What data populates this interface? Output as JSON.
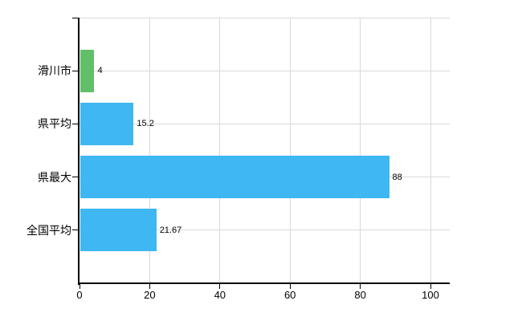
{
  "chart_data": {
    "type": "bar",
    "orientation": "horizontal",
    "title": "",
    "xlabel": "",
    "ylabel": "",
    "categories": [
      "滑川市",
      "県平均",
      "県最大",
      "全国平均"
    ],
    "values": [
      4,
      15.2,
      88,
      21.67
    ],
    "value_labels": [
      "4",
      "15.2",
      "88",
      "21.67"
    ],
    "bar_colors": [
      "#62bf69",
      "#3eb7f2",
      "#3eb7f2",
      "#3eb7f2"
    ],
    "x_ticks": [
      0,
      20,
      40,
      60,
      80,
      100
    ],
    "x_tick_labels": [
      "0",
      "20",
      "40",
      "60",
      "80",
      "100"
    ],
    "xlim": [
      0,
      105.5
    ],
    "grid": true,
    "legend": "none",
    "background_color": "#ffffff",
    "axis_color": "#000000",
    "gridline_color": "#d9d9d9",
    "text_color": "#000000"
  }
}
